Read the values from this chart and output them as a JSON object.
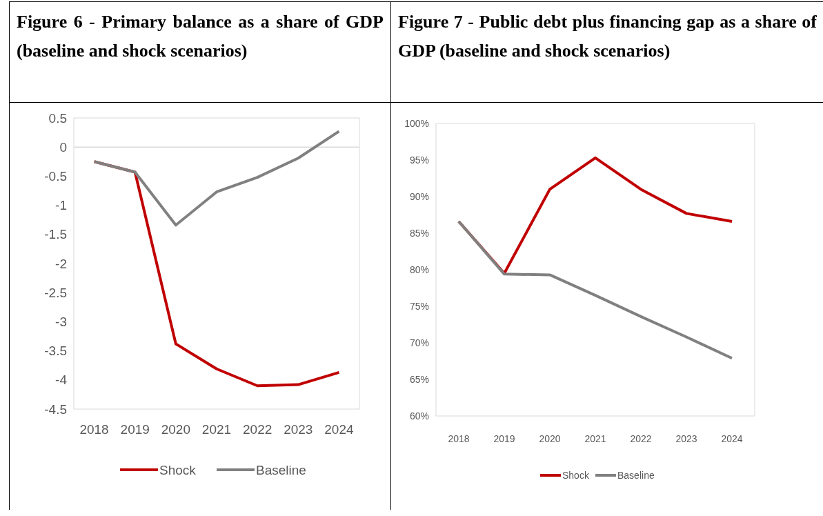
{
  "chart_data": [
    {
      "type": "line",
      "title": "Figure 6 - Primary balance as a share of GDP (baseline and shock scenarios)",
      "categories": [
        "2018",
        "2019",
        "2020",
        "2021",
        "2022",
        "2023",
        "2024"
      ],
      "series": [
        {
          "name": "Shock",
          "color": "#c00000",
          "values": [
            -0.25,
            -0.43,
            -3.38,
            -3.81,
            -4.1,
            -4.08,
            -3.87
          ]
        },
        {
          "name": "Baseline",
          "color": "#808080",
          "values": [
            -0.25,
            -0.43,
            -1.34,
            -0.77,
            -0.52,
            -0.19,
            0.27
          ]
        }
      ],
      "ylim": [
        -4.5,
        0.5
      ],
      "yticks": [
        -4.5,
        -4,
        -3.5,
        -3,
        -2.5,
        -2,
        -1.5,
        -1,
        -0.5,
        0,
        0.5
      ],
      "ref_lines": [
        {
          "axis": "y",
          "value": 0,
          "color": "#d9d9d9"
        }
      ],
      "grid": false,
      "legend": "bottom",
      "marker": "none",
      "line_style": "solid"
    },
    {
      "type": "line",
      "title": "Figure 7 - Public debt plus financing gap as a share of GDP (baseline and shock scenarios)",
      "categories": [
        "2018",
        "2019",
        "2020",
        "2021",
        "2022",
        "2023",
        "2024"
      ],
      "series": [
        {
          "name": "Shock",
          "color": "#c00000",
          "values": [
            86.6,
            79.5,
            91.0,
            95.3,
            91.0,
            87.7,
            86.6
          ]
        },
        {
          "name": "Baseline",
          "color": "#808080",
          "values": [
            86.6,
            79.4,
            79.3,
            76.5,
            73.6,
            70.8,
            67.9
          ]
        }
      ],
      "ylim": [
        60,
        100
      ],
      "yticks": [
        {
          "value": 60,
          "label": "60%"
        },
        {
          "value": 65,
          "label": "65%"
        },
        {
          "value": 70,
          "label": "70%"
        },
        {
          "value": 75,
          "label": "75%"
        },
        {
          "value": 80,
          "label": "80%"
        },
        {
          "value": 85,
          "label": "85%"
        },
        {
          "value": 90,
          "label": "90%"
        },
        {
          "value": 95,
          "label": "95%"
        },
        {
          "value": 100,
          "label": "100%"
        }
      ],
      "grid": false,
      "legend": "bottom",
      "marker": "none",
      "line_style": "solid"
    }
  ]
}
